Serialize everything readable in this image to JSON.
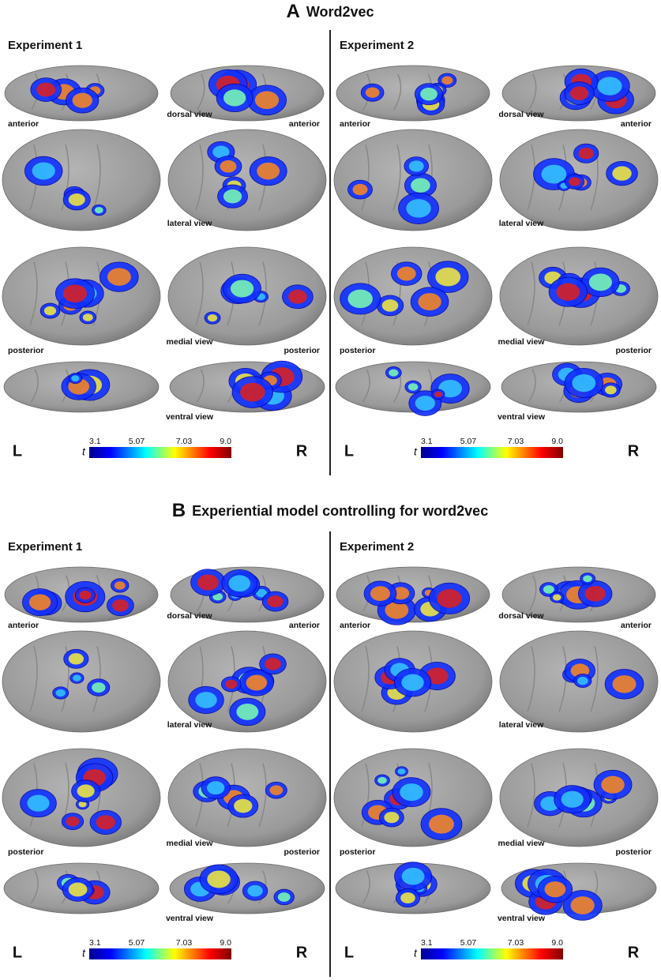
{
  "panels": [
    {
      "letter": "A",
      "title": "Word2vec",
      "experiments": [
        {
          "title": "Experiment 1",
          "dorsal": {
            "left": "anterior",
            "view": "dorsal view",
            "right": "anterior"
          },
          "lateral": {
            "view": "lateral view"
          },
          "medial": {
            "left": "posterior",
            "view": "medial view",
            "right": "posterior"
          },
          "ventral": {
            "view": "ventral view"
          },
          "hemispheres": [
            "L",
            "R"
          ],
          "colorbar": {
            "symbol": "t",
            "ticks": [
              "3.1",
              "5.07",
              "7.03",
              "9.0"
            ]
          }
        },
        {
          "title": "Experiment 2",
          "dorsal": {
            "left": "anterior",
            "view": "dorsal view",
            "right": "anterior"
          },
          "lateral": {
            "view": "lateral view"
          },
          "medial": {
            "left": "posterior",
            "view": "medial view",
            "right": "posterior"
          },
          "ventral": {
            "view": "ventral view"
          },
          "hemispheres": [
            "L",
            "R"
          ],
          "colorbar": {
            "symbol": "t",
            "ticks": [
              "3.1",
              "5.07",
              "7.03",
              "9.0"
            ]
          }
        }
      ]
    },
    {
      "letter": "B",
      "title": "Experiential model controlling for word2vec",
      "experiments": [
        {
          "title": "Experiment 1",
          "dorsal": {
            "left": "anterior",
            "view": "dorsal view",
            "right": "anterior"
          },
          "lateral": {
            "view": "lateral view"
          },
          "medial": {
            "left": "posterior",
            "view": "medial view",
            "right": "posterior"
          },
          "ventral": {
            "view": "ventral view"
          },
          "hemispheres": [
            "L",
            "R"
          ],
          "colorbar": {
            "symbol": "t",
            "ticks": [
              "3.1",
              "5.07",
              "7.03",
              "9.0"
            ]
          }
        },
        {
          "title": "Experiment 2",
          "dorsal": {
            "left": "anterior",
            "view": "dorsal view",
            "right": "anterior"
          },
          "lateral": {
            "view": "lateral view"
          },
          "medial": {
            "left": "posterior",
            "view": "medial view",
            "right": "posterior"
          },
          "ventral": {
            "view": "ventral view"
          },
          "hemispheres": [
            "L",
            "R"
          ],
          "colorbar": {
            "symbol": "t",
            "ticks": [
              "3.1",
              "5.07",
              "7.03",
              "9.0"
            ]
          }
        }
      ]
    }
  ]
}
